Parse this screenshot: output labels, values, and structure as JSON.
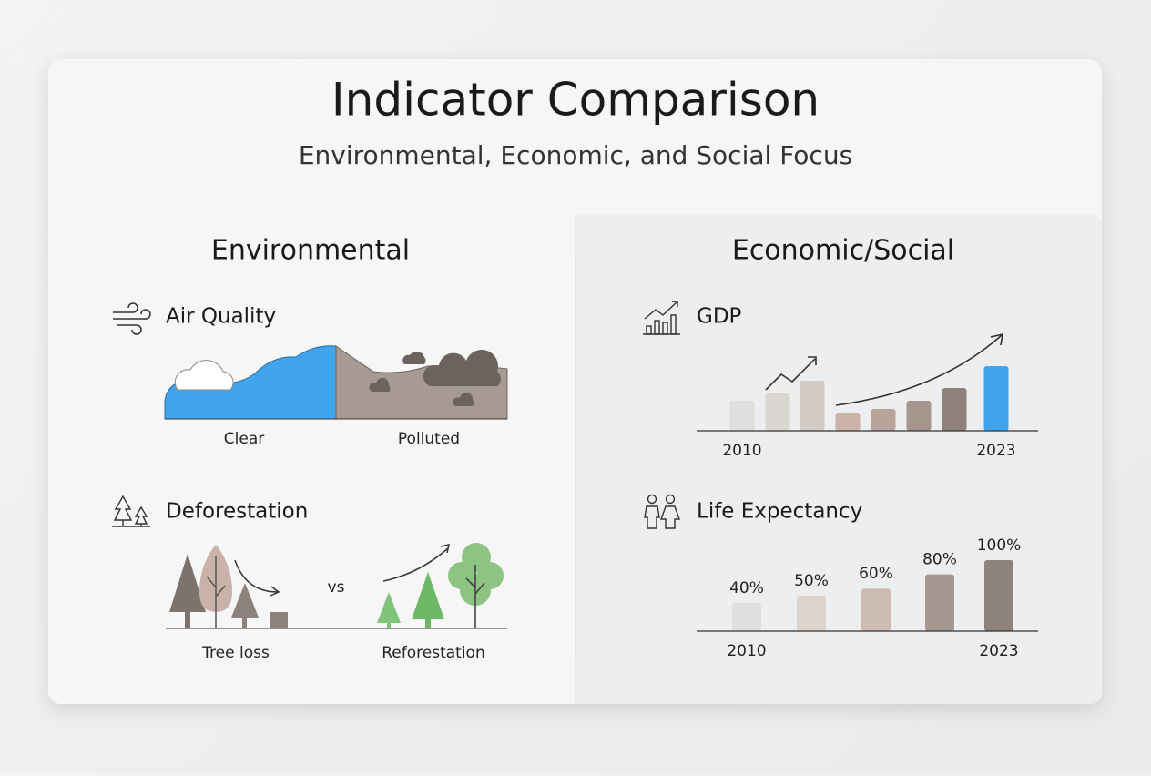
{
  "header": {
    "title": "Indicator Comparison",
    "subtitle": "Environmental, Economic, and Social Focus"
  },
  "environmental": {
    "heading": "Environmental",
    "air_quality": {
      "label": "Air Quality",
      "clear": "Clear",
      "polluted": "Polluted"
    },
    "deforestation": {
      "label": "Deforestation",
      "tree_loss": "Tree loss",
      "vs": "vs",
      "reforestation": "Reforestation"
    }
  },
  "economic_social": {
    "heading": "Economic/Social"
  },
  "chart_data": [
    {
      "type": "bar",
      "title": "GDP",
      "categories": [
        "2010",
        null,
        null,
        null,
        null,
        null,
        null,
        "2023"
      ],
      "values": [
        33,
        41,
        55,
        20,
        24,
        33,
        47,
        71
      ],
      "colors": [
        "#e0dfdd",
        "#d9d5d1",
        "#d3ccc6",
        "#c9b3a9",
        "#b7a49b",
        "#a5958c",
        "#8f817b",
        "#42a5ec"
      ],
      "ylim": [
        0,
        80
      ]
    },
    {
      "type": "bar",
      "title": "Life Expectancy",
      "categories": [
        "2010",
        null,
        null,
        null,
        "2023"
      ],
      "values": [
        40,
        50,
        60,
        80,
        100
      ],
      "value_labels": [
        "40%",
        "50%",
        "60%",
        "80%",
        "100%"
      ],
      "colors": [
        "#e1dfdd",
        "#dcd3cd",
        "#cdbcb3",
        "#a59891",
        "#8e827c"
      ],
      "ylim": [
        0,
        100
      ]
    }
  ]
}
